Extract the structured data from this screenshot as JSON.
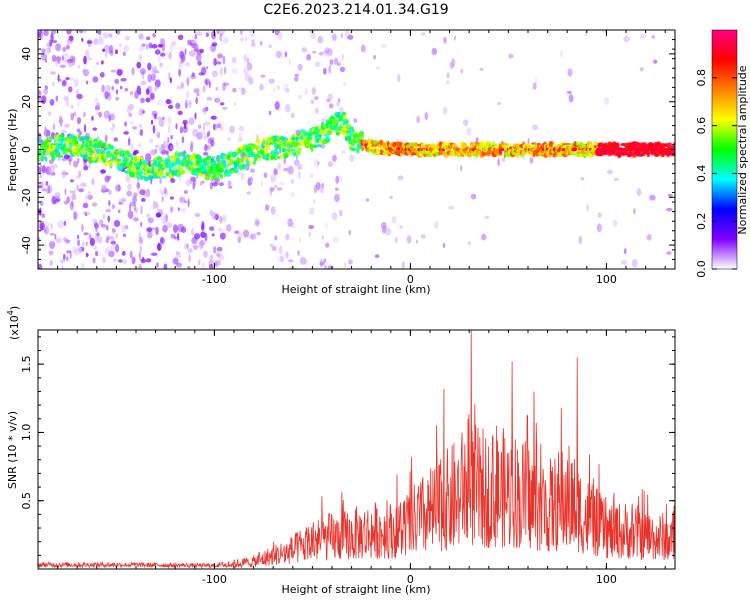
{
  "title": "C2E6.2023.214.01.34.G19",
  "chart_data": [
    {
      "type": "heatmap",
      "xlabel": "Height of straight line (km)",
      "ylabel": "Frequency (Hz)",
      "xlim": [
        -190,
        135
      ],
      "ylim": [
        -50,
        50
      ],
      "x_ticks": [
        -100,
        0,
        100
      ],
      "x_tick_labels": [
        "-100",
        "0",
        "100"
      ],
      "y_ticks": [
        -40,
        -20,
        0,
        20,
        40
      ],
      "y_tick_labels": [
        "-40",
        "-20",
        "0",
        "20",
        "40"
      ],
      "ridge": {
        "x": [
          -190,
          -170,
          -150,
          -135,
          -115,
          -100,
          -90,
          -75,
          -60,
          -45,
          -35,
          -30,
          -20,
          0,
          50,
          100,
          135
        ],
        "y": [
          0,
          2,
          -4,
          -8,
          -6,
          -8,
          -5,
          0,
          2,
          6,
          12,
          4,
          1,
          0,
          0,
          0,
          0
        ]
      },
      "colorbar": {
        "label": "Normalized spectral amplitude",
        "range": [
          0,
          1
        ],
        "ticks": [
          0.0,
          0.2,
          0.4,
          0.6,
          0.8
        ],
        "tick_labels": [
          "0.0",
          "0.2",
          "0.4",
          "0.6",
          "0.8"
        ],
        "colors": [
          "#ffffff",
          "#8000ff",
          "#0000ff",
          "#00ffff",
          "#00ff00",
          "#ffff00",
          "#ff8000",
          "#ff0000",
          "#ff0080"
        ]
      }
    },
    {
      "type": "line",
      "xlabel": "Height of straight line (km)",
      "ylabel": "SNR (10 * v/v)",
      "y_scale_label": "(x10",
      "y_scale_exp": "4",
      "xlim": [
        -190,
        135
      ],
      "ylim": [
        0,
        1.75
      ],
      "x_ticks": [
        -100,
        0,
        100
      ],
      "x_tick_labels": [
        "-100",
        "0",
        "100"
      ],
      "y_ticks": [
        0.5,
        1.0,
        1.5
      ],
      "y_tick_labels": [
        "0.5",
        "1.0",
        "1.5"
      ],
      "color": "#e8322a",
      "envelope": {
        "x": [
          -190,
          -150,
          -100,
          -80,
          -70,
          -60,
          -50,
          -40,
          -30,
          -20,
          -10,
          0,
          10,
          20,
          30,
          40,
          50,
          60,
          70,
          80,
          90,
          100,
          110,
          120,
          135
        ],
        "y": [
          0.05,
          0.05,
          0.04,
          0.1,
          0.18,
          0.25,
          0.38,
          0.42,
          0.45,
          0.5,
          0.5,
          0.6,
          0.75,
          0.9,
          1.1,
          1.0,
          1.05,
          0.95,
          0.8,
          0.95,
          0.7,
          0.5,
          0.5,
          0.45,
          0.4
        ]
      },
      "peaks": [
        {
          "x": 31,
          "y": 1.75
        },
        {
          "x": 52,
          "y": 1.52
        },
        {
          "x": 85,
          "y": 1.55
        },
        {
          "x": 17,
          "y": 1.32
        },
        {
          "x": 63,
          "y": 1.3
        },
        {
          "x": 77,
          "y": 1.18
        },
        {
          "x": 44,
          "y": 1.05
        }
      ]
    }
  ]
}
